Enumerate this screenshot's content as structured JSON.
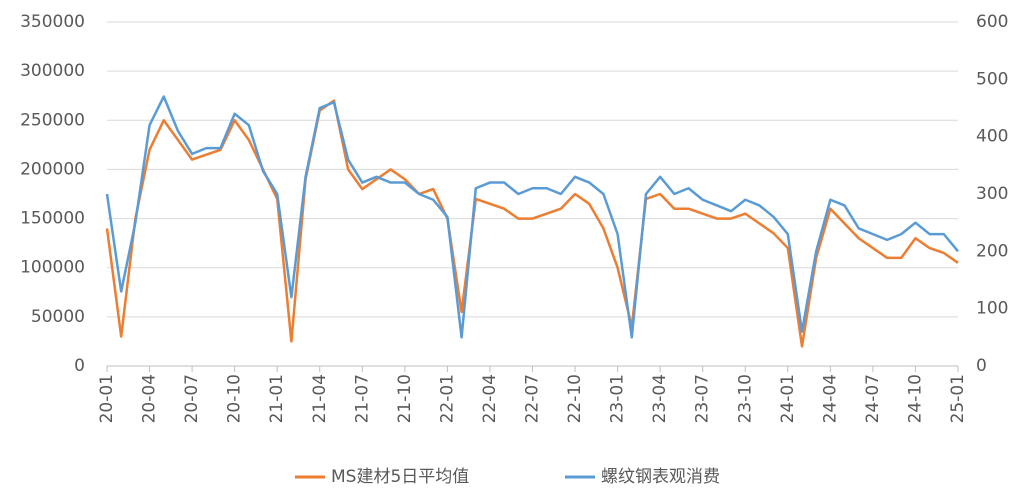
{
  "chart_data": {
    "type": "line",
    "categories": [
      "20-01",
      null,
      null,
      "20-04",
      null,
      null,
      "20-07",
      null,
      null,
      "20-10",
      null,
      null,
      "21-01",
      null,
      null,
      "21-04",
      null,
      null,
      "21-07",
      null,
      null,
      "21-10",
      null,
      null,
      "22-01",
      null,
      null,
      "22-04",
      null,
      null,
      "22-07",
      null,
      null,
      "22-10",
      null,
      null,
      "23-01",
      null,
      null,
      "23-04",
      null,
      null,
      "23-07",
      null,
      null,
      "23-10",
      null,
      null,
      "24-01",
      null,
      null,
      "24-04",
      null,
      null,
      "24-07",
      null,
      null,
      "24-10",
      null,
      null,
      "25-01"
    ],
    "series": [
      {
        "name": "MS建材5日平均值",
        "color": "#ed7d31",
        "values": [
          140000,
          30000,
          150000,
          220000,
          250000,
          230000,
          210000,
          215000,
          220000,
          250000,
          230000,
          200000,
          170000,
          25000,
          190000,
          260000,
          270000,
          200000,
          180000,
          190000,
          200000,
          190000,
          175000,
          180000,
          150000,
          55000,
          170000,
          165000,
          160000,
          150000,
          150000,
          155000,
          160000,
          175000,
          165000,
          140000,
          100000,
          40000,
          170000,
          175000,
          160000,
          160000,
          155000,
          150000,
          150000,
          155000,
          145000,
          135000,
          120000,
          20000,
          110000,
          160000,
          145000,
          130000,
          120000,
          110000,
          110000,
          130000,
          120000,
          115000,
          105000
        ]
      },
      {
        "name": "螺纹钢表观消费",
        "color": "#5b9bd5",
        "axis": "y2",
        "values": [
          300,
          130,
          250,
          420,
          470,
          410,
          370,
          380,
          380,
          440,
          420,
          340,
          300,
          120,
          330,
          450,
          460,
          360,
          320,
          330,
          320,
          320,
          300,
          290,
          260,
          50,
          310,
          320,
          320,
          300,
          310,
          310,
          300,
          330,
          320,
          300,
          230,
          50,
          300,
          330,
          300,
          310,
          290,
          280,
          270,
          290,
          280,
          260,
          230,
          60,
          200,
          290,
          280,
          240,
          230,
          220,
          230,
          250,
          230,
          230,
          200
        ]
      }
    ],
    "ylim": [
      0,
      350000
    ],
    "yticks": [
      0,
      50000,
      100000,
      150000,
      200000,
      250000,
      300000,
      350000
    ],
    "y2lim": [
      0,
      600
    ],
    "y2ticks": [
      0,
      100,
      200,
      300,
      400,
      500,
      600
    ],
    "grid": true
  }
}
